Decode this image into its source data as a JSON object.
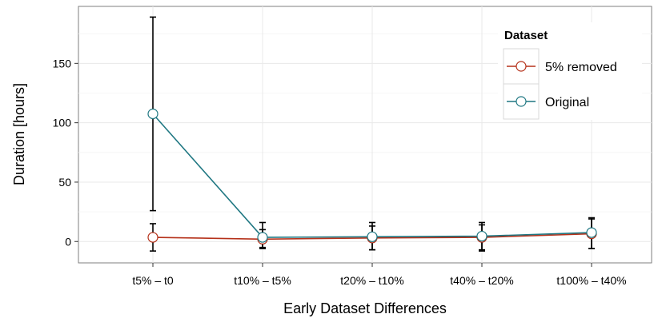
{
  "chart_data": {
    "type": "line",
    "xlabel": "Early Dataset Differences",
    "ylabel": "Duration [hours]",
    "categories": [
      "t5% – t0",
      "t10% – t5%",
      "t20% – t10%",
      "t40% – t20%",
      "t100% – t40%"
    ],
    "yticks": [
      0,
      50,
      100,
      150
    ],
    "ylim": [
      -18,
      198
    ],
    "grid": true,
    "legend": {
      "title": "Dataset",
      "placement": "top-right"
    },
    "series": [
      {
        "name": "5% removed",
        "color": "#b5311a",
        "values": [
          3.5,
          2.0,
          3.0,
          3.5,
          6.5
        ],
        "err_low": [
          -8,
          -6,
          -7,
          -8,
          -6
        ],
        "err_high": [
          15,
          10,
          13,
          14,
          19
        ]
      },
      {
        "name": "Original",
        "color": "#1f7782",
        "values": [
          107.5,
          3.5,
          4.0,
          4.5,
          7.5
        ],
        "err_low": [
          26,
          -5,
          -7,
          -7,
          -6
        ],
        "err_high": [
          189,
          16,
          16,
          16,
          20
        ]
      }
    ]
  }
}
